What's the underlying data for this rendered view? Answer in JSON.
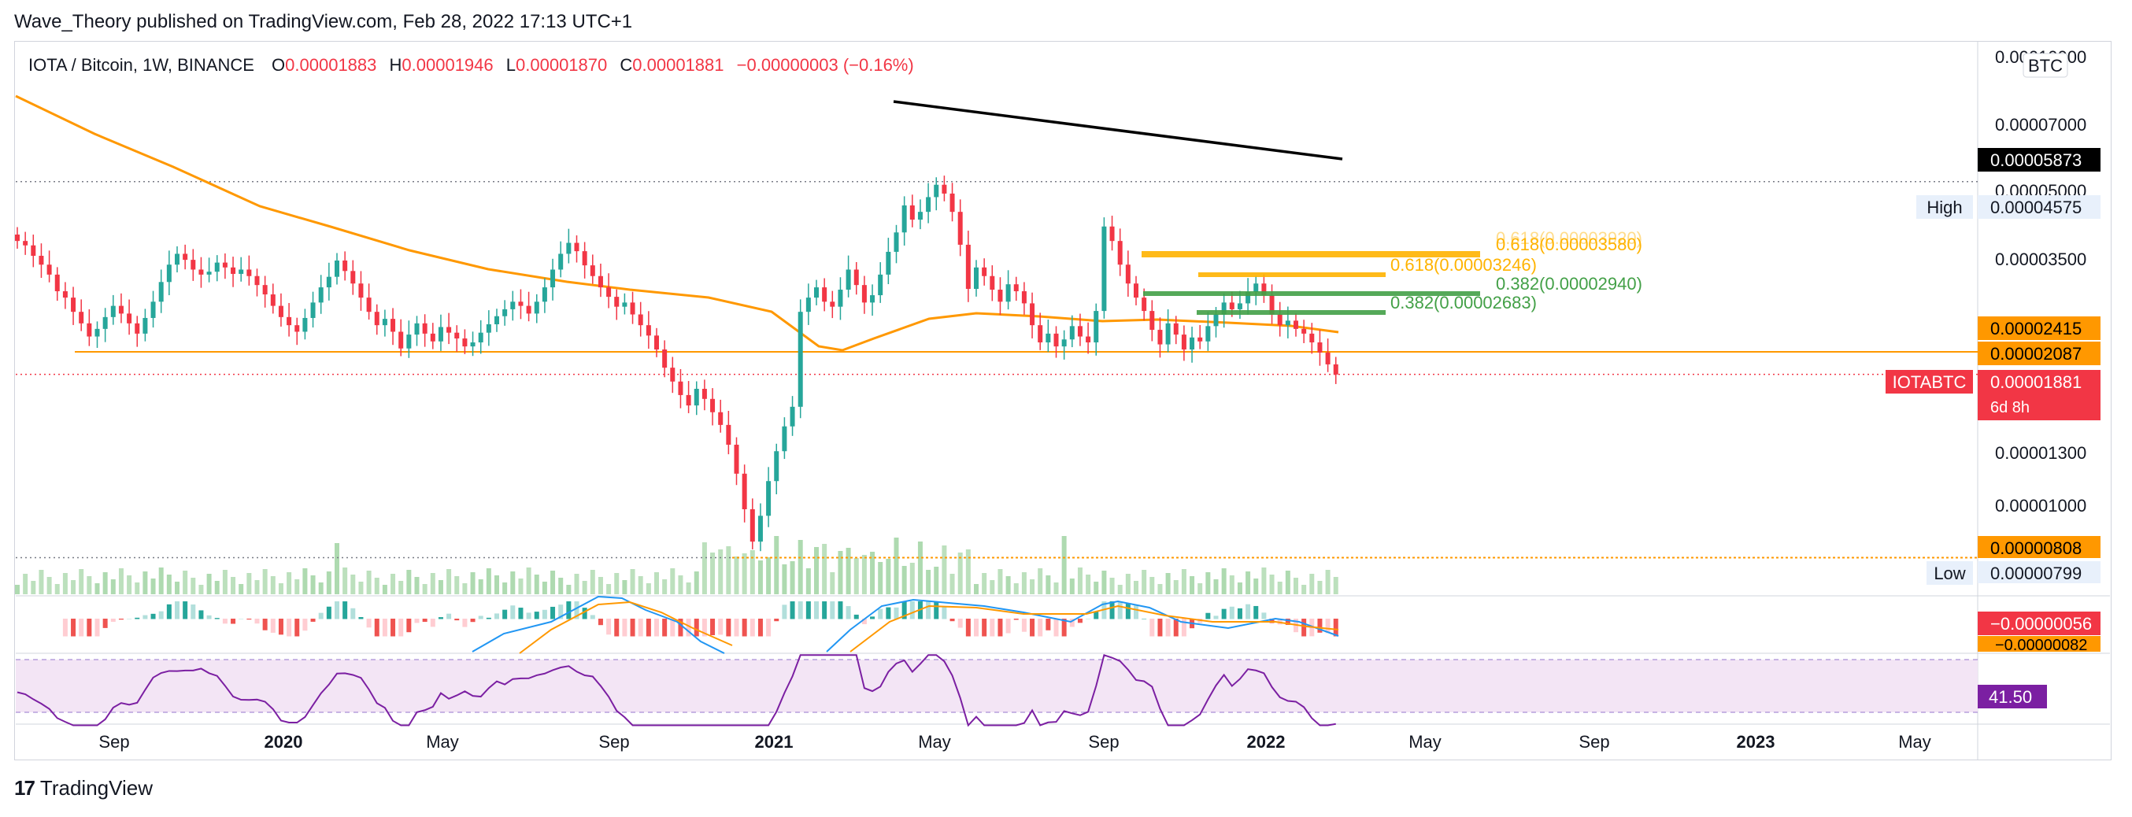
{
  "publisher": "Wave_Theory published on TradingView.com, Feb 28, 2022 17:13 UTC+1",
  "footer_brand": "TradingView",
  "legend": {
    "symbol": "IOTA / Bitcoin, 1W, BINANCE",
    "open_label": "O",
    "open": "0.00001883",
    "high_label": "H",
    "high": "0.00001946",
    "low_label": "L",
    "low": "0.00001870",
    "close_label": "C",
    "close": "0.00001881",
    "change": "−0.00000003 (−0.16%)"
  },
  "colors": {
    "up": "#26a69a",
    "down": "#f23645",
    "ma": "#ff9800",
    "fib_yellow": "#ffb300",
    "fib_green": "#43a047",
    "rsi": "#7b1fa2",
    "rsi_bg": "#f3e5f5",
    "macd": "#2196f3"
  },
  "chart_data": {
    "type": "candlestick",
    "symbol": "IOTABTC",
    "timeframe": "1W",
    "currency": "BTC",
    "x_ticks": [
      "Sep",
      "2020",
      "May",
      "Sep",
      "2021",
      "May",
      "Sep",
      "2022",
      "May",
      "Sep",
      "2023",
      "May"
    ],
    "y_ticks": [
      "0.00007000",
      "0.00005000",
      "0.00003500",
      "0.00001300",
      "0.00001000"
    ],
    "y_top_tick_partial": "0.00010000",
    "price_tags": [
      {
        "value": "0.00005873",
        "style": "black"
      },
      {
        "value": "0.00004575",
        "label": "High",
        "style": "plain"
      },
      {
        "value": "0.00002415",
        "style": "orange"
      },
      {
        "value": "0.00002087",
        "style": "orange"
      },
      {
        "value": "0.00001881",
        "label": "IOTABTC",
        "sub": "6d 8h",
        "style": "red"
      },
      {
        "value": "0.00000808",
        "style": "orange"
      },
      {
        "value": "0.00000799",
        "label": "Low",
        "style": "plain"
      }
    ],
    "fib_levels": [
      {
        "label": "0.618(0.00003580)",
        "ghost": "0.618(0.00003920)",
        "color": "yellow"
      },
      {
        "label": "0.618(0.00003246)",
        "color": "yellow"
      },
      {
        "label": "0.382(0.00002940)",
        "color": "green"
      },
      {
        "label": "0.382(0.00002683)",
        "color": "green"
      }
    ],
    "horizontal_levels": [
      "0.00002087",
      "0.00000808",
      "0.00004575"
    ],
    "candles_close_approx": [
      3.48e-05,
      3.41e-05,
      3.25e-05,
      3.12e-05,
      2.98e-05,
      2.76e-05,
      2.68e-05,
      2.51e-05,
      2.38e-05,
      2.24e-05,
      2.32e-05,
      2.45e-05,
      2.58e-05,
      2.49e-05,
      2.38e-05,
      2.27e-05,
      2.44e-05,
      2.63e-05,
      2.88e-05,
      3.12e-05,
      3.28e-05,
      3.19e-05,
      3.05e-05,
      2.98e-05,
      3.02e-05,
      3.15e-05,
      3.08e-05,
      2.99e-05,
      3.05e-05,
      2.96e-05,
      2.84e-05,
      2.72e-05,
      2.58e-05,
      2.45e-05,
      2.36e-05,
      2.29e-05,
      2.44e-05,
      2.62e-05,
      2.81e-05,
      2.95e-05,
      3.18e-05,
      3.03e-05,
      2.86e-05,
      2.68e-05,
      2.51e-05,
      2.36e-05,
      2.43e-05,
      2.29e-05,
      2.12e-05,
      2.26e-05,
      2.38e-05,
      2.27e-05,
      2.19e-05,
      2.34e-05,
      2.28e-05,
      2.22e-05,
      2.14e-05,
      2.18e-05,
      2.28e-05,
      2.37e-05,
      2.46e-05,
      2.54e-05,
      2.63e-05,
      2.58e-05,
      2.49e-05,
      2.63e-05,
      2.81e-05,
      3.05e-05,
      3.28e-05,
      3.45e-05,
      3.32e-05,
      3.11e-05,
      2.96e-05,
      2.81e-05,
      2.69e-05,
      2.57e-05,
      2.62e-05,
      2.48e-05,
      2.36e-05,
      2.25e-05,
      2.11e-05,
      1.94e-05,
      1.82e-05,
      1.71e-05,
      1.63e-05,
      1.76e-05,
      1.68e-05,
      1.58e-05,
      1.49e-05,
      1.36e-05,
      1.19e-05,
      1.01e-05,
      8.7e-06,
      9.8e-06,
      1.15e-05,
      1.32e-05,
      1.48e-05,
      1.62e-05,
      2.51e-05,
      2.68e-05,
      2.81e-05,
      2.63e-05,
      2.57e-05,
      2.78e-05,
      3.05e-05,
      2.84e-05,
      2.62e-05,
      2.71e-05,
      2.98e-05,
      3.31e-05,
      3.62e-05,
      4.1e-05,
      3.84e-05,
      3.98e-05,
      4.26e-05,
      4.51e-05,
      4.33e-05,
      3.98e-05,
      3.42e-05,
      2.79e-05,
      3.08e-05,
      2.96e-05,
      2.78e-05,
      2.63e-05,
      2.85e-05,
      2.76e-05,
      2.61e-05,
      2.36e-05,
      2.18e-05,
      2.27e-05,
      2.14e-05,
      2.21e-05,
      2.35e-05,
      2.24e-05,
      2.18e-05,
      2.52e-05,
      3.72e-05,
      3.48e-05,
      3.12e-05,
      2.86e-05,
      2.68e-05,
      2.52e-05,
      2.31e-05,
      2.16e-05,
      2.38e-05,
      2.26e-05,
      2.11e-05,
      2.23e-05,
      2.19e-05,
      2.35e-05,
      2.48e-05,
      2.62e-05,
      2.54e-05,
      2.61e-05,
      2.75e-05,
      2.86e-05,
      2.71e-05,
      2.48e-05,
      2.36e-05,
      2.41e-05,
      2.32e-05,
      2.27e-05,
      2.18e-05,
      2.08e-05,
      1.97e-05,
      1.88e-05
    ],
    "ma_line": "orange moving average, declining from ~0.0000700 to ~0.0000241",
    "black_line": "long-term moving average from ~0.0000720 (Apr 2021) to 0.00005873",
    "indicators": {
      "macd": {
        "value_tags": [
          "−0.00000056",
          "−0.00000082"
        ]
      },
      "rsi": {
        "value": "41.50"
      }
    }
  }
}
